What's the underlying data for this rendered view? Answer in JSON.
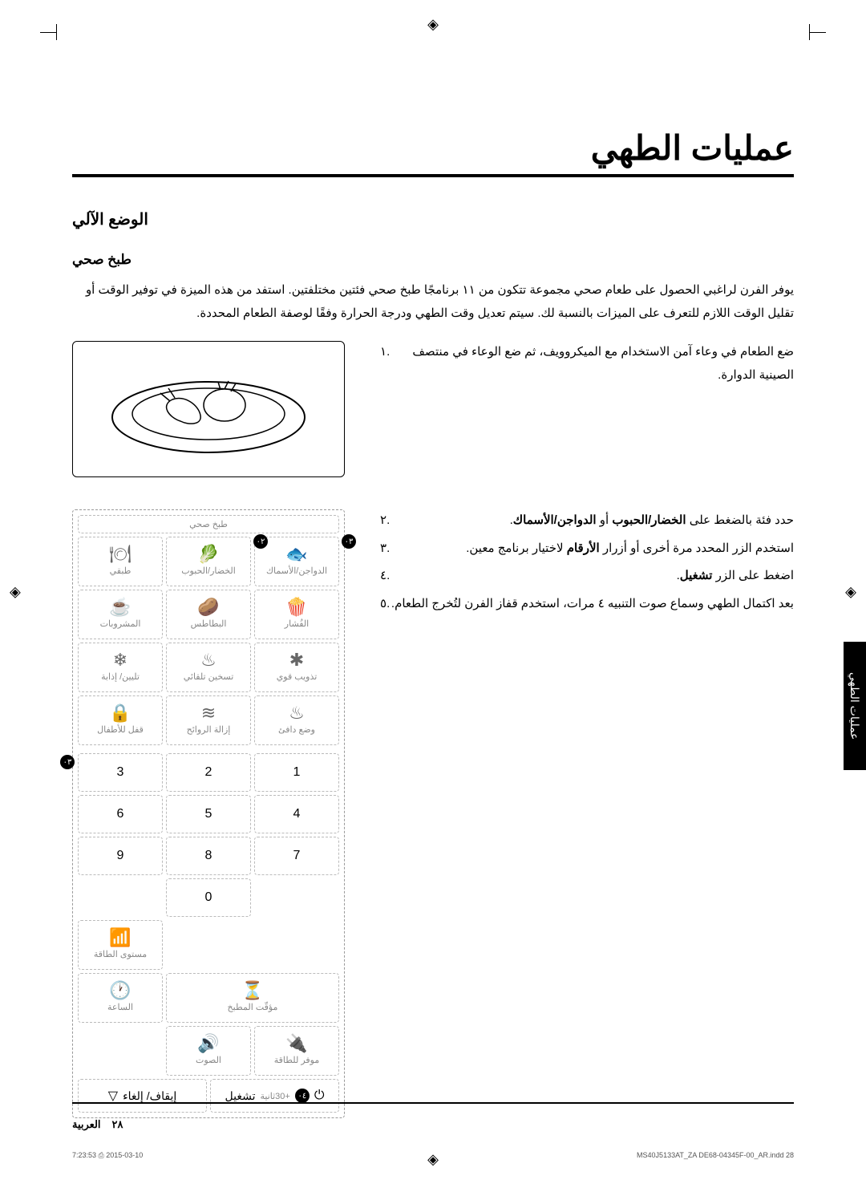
{
  "page": {
    "title": "عمليات الطهي",
    "section": "الوضع الآلي",
    "subsection": "طبخ صحي",
    "intro": "يوفر الفرن لراغبي الحصول على طعام صحي مجموعة تتكون من ١١ برنامجًا طبخ صحي فئتين مختلفتين. استفد من هذه الميزة في توفير الوقت أو تقليل الوقت اللازم للتعرف على الميزات بالنسبة لك. سيتم تعديل وقت الطهي ودرجة الحرارة وفقًا لوصفة الطعام المحددة."
  },
  "steps_a": [
    {
      "n": ".١",
      "text": "ضع الطعام في وعاء آمن الاستخدام مع الميكروويف، ثم ضع الوعاء في منتصف الصينية الدوارة."
    }
  ],
  "steps_b": [
    {
      "n": ".٢",
      "text_parts": [
        "حدد فئة بالضغط على ",
        {
          "b": "الخضار/الحبوب"
        },
        " أو ",
        {
          "b": "الدواجن/الأسماك"
        },
        "."
      ]
    },
    {
      "n": ".٣",
      "text_parts": [
        "استخدم الزر المحدد مرة أخرى أو أزرار ",
        {
          "b": "الأرقام"
        },
        " لاختيار برنامج معين."
      ]
    },
    {
      "n": ".٤",
      "text_parts": [
        "اضغط على الزر ",
        {
          "b": "تشغيل"
        },
        "."
      ]
    },
    {
      "n": ".٥",
      "text_parts": [
        "بعد اكتمال الطهي وسماع صوت التنبيه ٤ مرات، استخدم قفاز الفرن لتُخرج الطعام."
      ]
    }
  ],
  "panel": {
    "header": "طبخ صحي",
    "row1": [
      {
        "icon": "🍽",
        "label": "طبقي"
      },
      {
        "icon": "🥬",
        "label": "الخضار/الحبوب",
        "callout": "٠٢"
      },
      {
        "icon": "🐟",
        "label": "الدواجن/الأسماك",
        "callout": "٠٣"
      }
    ],
    "row2": [
      {
        "icon": "☕",
        "label": "المشروبات"
      },
      {
        "icon": "🥔",
        "label": "البطاطس"
      },
      {
        "icon": "🍿",
        "label": "الفُشار"
      }
    ],
    "row3": [
      {
        "icon": "❄",
        "label": "تليين/ إذابة"
      },
      {
        "icon": "♨",
        "label": "تسخين تلقائي"
      },
      {
        "icon": "✱",
        "label": "تذويب قوي"
      }
    ],
    "row4": [
      {
        "icon": "🔒",
        "label": "قفل للأطفال"
      },
      {
        "icon": "≋",
        "label": "إزالة الروائح"
      },
      {
        "icon": "♨",
        "label": "وضع دافئ"
      }
    ],
    "keypad_callout": "٠٣",
    "keypad": [
      "1",
      "2",
      "3",
      "4",
      "5",
      "6",
      "7",
      "8",
      "9",
      "",
      "0",
      ""
    ],
    "row_bottom1": [
      {
        "icon": "⏳",
        "label": "مؤقّت المطبخ"
      },
      {
        "icon": "📶",
        "label": "مستوى الطاقة"
      }
    ],
    "row_bottom1_span": true,
    "row_bottom2": [
      {
        "icon": "🔊",
        "label": "الصوت"
      },
      {
        "icon": "🔌",
        "label": "موفر للطاقة"
      },
      {
        "icon": "🕐",
        "label": "الساعة"
      }
    ],
    "start": {
      "icon": "◇",
      "label": "تشغيل",
      "extra": "+30ثانية",
      "callout": "٠٤"
    },
    "stop": {
      "icon": "▽",
      "label": "إيقاف/ إلغاء"
    }
  },
  "side_tab": "عمليات الطهي",
  "footer": {
    "page_no": "٢٨",
    "lang": "العربية"
  },
  "print": {
    "file": "MS40J5133AT_ZA DE68-04345F-00_AR.indd   28",
    "ts": "2015-03-10   ⎙ 7:23:53"
  },
  "colors": {
    "text": "#000000",
    "muted": "#888888",
    "dash": "#bbbbbb",
    "bg": "#ffffff"
  }
}
